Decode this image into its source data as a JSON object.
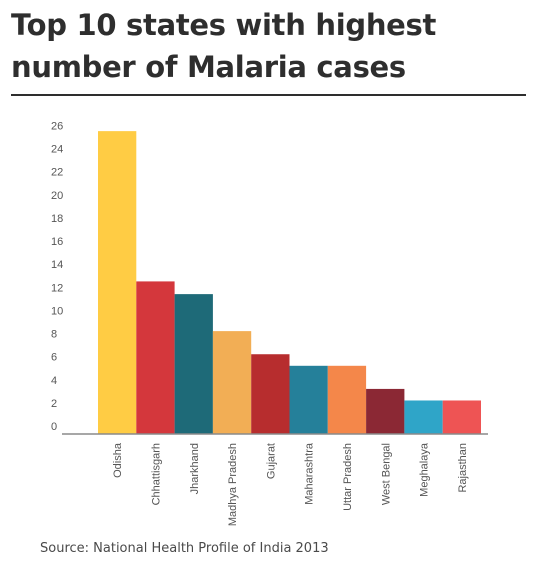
{
  "title": "Top 10 states with highest number of Malaria cases",
  "source": "Source: National Health Profile of India 2013",
  "chart_data": {
    "type": "bar",
    "title": "Top 10 states with highest number of Malaria cases",
    "xlabel": "",
    "ylabel": "",
    "ylim": [
      0,
      26
    ],
    "yticks": [
      0,
      2,
      4,
      6,
      8,
      10,
      12,
      14,
      16,
      18,
      20,
      22,
      24,
      26
    ],
    "grid": false,
    "legend": "none",
    "categories": [
      "Odisha",
      "Chhattisgarh",
      "Jharkhand",
      "Madhya Pradesh",
      "Gujarat",
      "Maharashtra",
      "Uttar Pradesh",
      "West Bengal",
      "Meghalaya",
      "Rajasthan"
    ],
    "values": [
      26.2,
      13.2,
      12.1,
      8.9,
      6.9,
      5.9,
      5.9,
      3.9,
      2.9,
      2.9
    ],
    "colors": [
      "#FFCC44",
      "#D4373C",
      "#1E6A78",
      "#F2AE55",
      "#B72D2E",
      "#25809A",
      "#F4874A",
      "#8B2834",
      "#2FA5C8",
      "#EE5454"
    ]
  }
}
